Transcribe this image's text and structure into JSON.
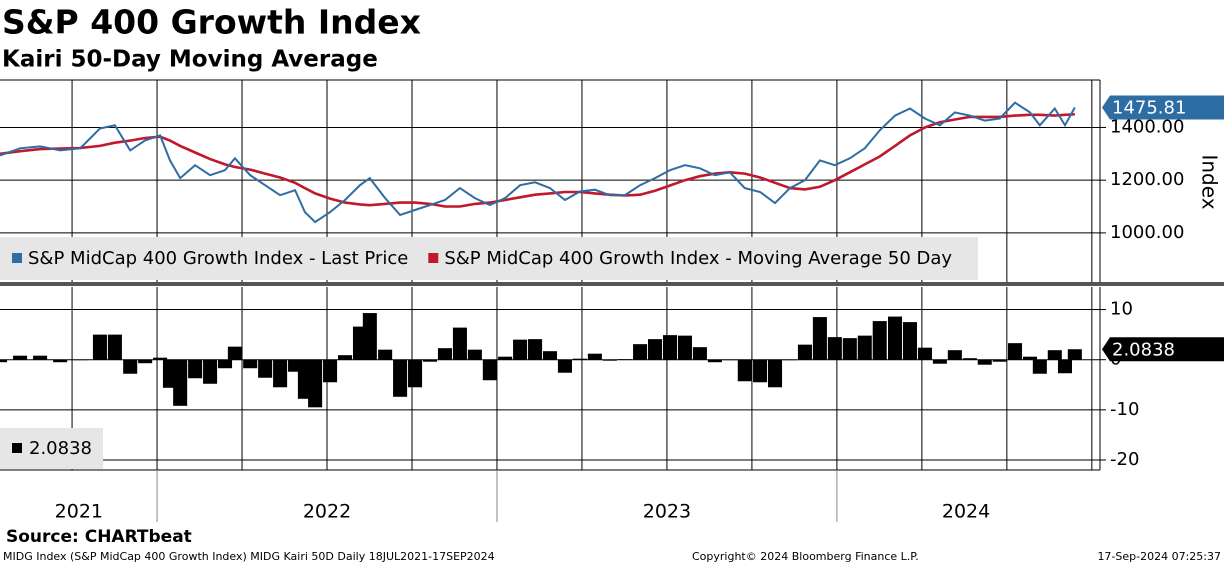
{
  "chart_data": [
    {
      "type": "line",
      "title": "S&P 400 Growth Index",
      "subtitle": "Kairi 50-Day Moving Average",
      "ylabel": "Index",
      "x": [
        2021.538,
        2021.597,
        2021.656,
        2021.715,
        2021.774,
        2021.832,
        2021.876,
        2021.921,
        2021.965,
        2022.009,
        2022.038,
        2022.068,
        2022.112,
        2022.156,
        2022.2,
        2022.229,
        2022.274,
        2022.318,
        2022.362,
        2022.406,
        2022.435,
        2022.465,
        2022.509,
        2022.553,
        2022.597,
        2022.626,
        2022.671,
        2022.715,
        2022.759,
        2022.803,
        2022.847,
        2022.891,
        2022.935,
        2022.979,
        2023.024,
        2023.068,
        2023.112,
        2023.156,
        2023.2,
        2023.244,
        2023.288,
        2023.332,
        2023.376,
        2023.421,
        2023.465,
        2023.509,
        2023.553,
        2023.597,
        2023.641,
        2023.685,
        2023.729,
        2023.774,
        2023.818,
        2023.862,
        2023.906,
        2023.95,
        2023.994,
        2024.038,
        2024.082,
        2024.126,
        2024.171,
        2024.215,
        2024.259,
        2024.303,
        2024.347,
        2024.391,
        2024.435,
        2024.479,
        2024.524,
        2024.568,
        2024.597,
        2024.641,
        2024.671,
        2024.7
      ],
      "xlim": [
        2021.538,
        2024.774
      ],
      "x_grid": [
        2021.75,
        2022,
        2022.25,
        2022.5,
        2022.75,
        2023,
        2023.25,
        2023.5,
        2023.75,
        2024,
        2024.25,
        2024.5,
        2024.75
      ],
      "ylim": [
        810,
        1580
      ],
      "yticks": [
        {
          "value": 1000,
          "label": "1000.00"
        },
        {
          "value": 1200,
          "label": "1200.00"
        },
        {
          "value": 1400,
          "label": "1400.00"
        }
      ],
      "series": [
        {
          "name": "S&P MidCap 400 Growth Index - Last Price",
          "color": "#2e6da4",
          "values": [
            1294,
            1321,
            1328,
            1313,
            1321,
            1396,
            1408,
            1313,
            1351,
            1370,
            1275,
            1208,
            1257,
            1219,
            1238,
            1283,
            1219,
            1181,
            1143,
            1162,
            1079,
            1041,
            1079,
            1125,
            1181,
            1208,
            1132,
            1068,
            1087,
            1106,
            1125,
            1170,
            1132,
            1106,
            1132,
            1181,
            1192,
            1170,
            1125,
            1157,
            1164,
            1143,
            1143,
            1181,
            1208,
            1238,
            1257,
            1245,
            1219,
            1230,
            1170,
            1155,
            1113,
            1170,
            1200,
            1275,
            1257,
            1283,
            1321,
            1389,
            1445,
            1472,
            1434,
            1408,
            1457,
            1445,
            1426,
            1434,
            1494,
            1457,
            1408,
            1472,
            1408,
            1475.81
          ]
        },
        {
          "name": "S&P MidCap 400 Growth Index - Moving Average 50 Day",
          "color": "#c0182c",
          "values": [
            1300,
            1310,
            1318,
            1320,
            1322,
            1330,
            1342,
            1350,
            1360,
            1365,
            1350,
            1330,
            1305,
            1280,
            1260,
            1250,
            1240,
            1225,
            1210,
            1190,
            1170,
            1150,
            1130,
            1115,
            1108,
            1105,
            1110,
            1115,
            1115,
            1110,
            1100,
            1100,
            1110,
            1115,
            1125,
            1135,
            1145,
            1150,
            1155,
            1155,
            1150,
            1145,
            1142,
            1145,
            1160,
            1180,
            1200,
            1215,
            1225,
            1230,
            1225,
            1210,
            1190,
            1170,
            1165,
            1175,
            1200,
            1230,
            1260,
            1290,
            1330,
            1370,
            1400,
            1420,
            1430,
            1440,
            1440,
            1440,
            1445,
            1448,
            1448,
            1445,
            1448,
            1450
          ]
        }
      ]
    },
    {
      "type": "bar",
      "x": [
        2021.538,
        2021.597,
        2021.656,
        2021.715,
        2021.774,
        2021.832,
        2021.876,
        2021.921,
        2021.965,
        2022.009,
        2022.038,
        2022.068,
        2022.112,
        2022.156,
        2022.2,
        2022.229,
        2022.274,
        2022.318,
        2022.362,
        2022.406,
        2022.435,
        2022.465,
        2022.509,
        2022.553,
        2022.597,
        2022.626,
        2022.671,
        2022.715,
        2022.759,
        2022.803,
        2022.847,
        2022.891,
        2022.935,
        2022.979,
        2023.024,
        2023.068,
        2023.112,
        2023.156,
        2023.2,
        2023.244,
        2023.288,
        2023.332,
        2023.376,
        2023.421,
        2023.465,
        2023.509,
        2023.553,
        2023.597,
        2023.641,
        2023.685,
        2023.729,
        2023.774,
        2023.818,
        2023.862,
        2023.906,
        2023.95,
        2023.994,
        2024.038,
        2024.082,
        2024.126,
        2024.171,
        2024.215,
        2024.259,
        2024.303,
        2024.347,
        2024.391,
        2024.435,
        2024.479,
        2024.524,
        2024.568,
        2024.597,
        2024.641,
        2024.671,
        2024.7
      ],
      "xlim": [
        2021.538,
        2024.774
      ],
      "x_grid": [
        2021.75,
        2022,
        2022.25,
        2022.5,
        2022.75,
        2023,
        2023.25,
        2023.5,
        2023.75,
        2024,
        2024.25,
        2024.5,
        2024.75
      ],
      "x_separators": [
        2022,
        2023,
        2024
      ],
      "xticks": [
        {
          "value": 2021.77,
          "label": "2021"
        },
        {
          "value": 2022.5,
          "label": "2022"
        },
        {
          "value": 2023.5,
          "label": "2023"
        },
        {
          "value": 2024.38,
          "label": "2024"
        }
      ],
      "ylim": [
        -22,
        14.5
      ],
      "yticks": [
        10,
        0,
        -10,
        -20
      ],
      "series": [
        {
          "color": "#000000",
          "values": [
            -0.5,
            0.8,
            0.8,
            -0.5,
            0,
            5,
            5,
            -2.8,
            -0.7,
            0.4,
            -5.6,
            -9.2,
            -3.7,
            -4.8,
            -1.7,
            2.6,
            -1.7,
            -3.6,
            -5.5,
            -2.4,
            -7.8,
            -9.5,
            -4.5,
            0.9,
            6.6,
            9.3,
            2,
            -7.4,
            -5.5,
            -0.4,
            2.3,
            6.4,
            2,
            -4.1,
            0.6,
            4,
            4.1,
            1.7,
            -2.6,
            0.2,
            1.2,
            -0.2,
            0.1,
            3.1,
            4.1,
            4.9,
            4.8,
            2.5,
            -0.5,
            0,
            -4.3,
            -4.5,
            -5.5,
            0,
            3,
            8.5,
            4.5,
            4.3,
            4.8,
            7.7,
            8.6,
            7.5,
            2.4,
            -0.8,
            1.9,
            0.3,
            -1,
            -0.4,
            3.3,
            0.6,
            -2.8,
            1.9,
            -2.7,
            2.0838
          ]
        }
      ]
    }
  ],
  "footer": {
    "source": "Source: CHARTbeat",
    "description": "MIDG Index (S&P MidCap 400 Growth Index) MIDG Kairi 50D  Daily 18JUL2021-17SEP2024",
    "copyright": "Copyright© 2024 Bloomberg Finance L.P.",
    "timestamp": "17-Sep-2024 07:25:37"
  }
}
